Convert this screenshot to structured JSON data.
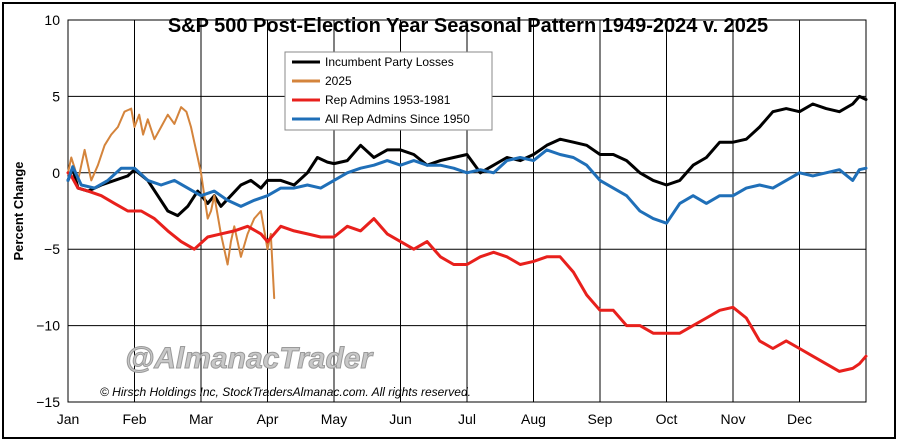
{
  "chart_data": {
    "type": "line",
    "title": "S&P 500 Post-Election Year Seasonal Pattern 1949-2024 v. 2025",
    "ylabel": "Percent Change",
    "xlabel": "",
    "ylim": [
      -15,
      10
    ],
    "yticks": [
      10,
      5,
      0,
      -5,
      -10,
      -15
    ],
    "ytick_labels": [
      "10",
      "5",
      "0",
      "−5",
      "−10",
      "−15"
    ],
    "months": [
      "Jan",
      "Feb",
      "Mar",
      "Apr",
      "May",
      "Jun",
      "Jul",
      "Aug",
      "Sep",
      "Oct",
      "Nov",
      "Dec"
    ],
    "xlim": [
      0,
      12
    ],
    "grid": true,
    "legend_position": "top-center",
    "watermark": "@AlmanacTrader",
    "copyright": "© Hirsch Holdings Inc, StockTradersAlmanac.com. All rights reserved.",
    "series": [
      {
        "name": "Incumbent Party Losses",
        "color": "#000000",
        "x": [
          0,
          0.07,
          0.15,
          0.3,
          0.5,
          0.7,
          0.9,
          1.0,
          1.2,
          1.35,
          1.5,
          1.65,
          1.8,
          1.95,
          2.1,
          2.2,
          2.3,
          2.45,
          2.6,
          2.75,
          2.9,
          3.0,
          3.2,
          3.4,
          3.6,
          3.75,
          3.9,
          4.0,
          4.2,
          4.4,
          4.6,
          4.8,
          5.0,
          5.2,
          5.4,
          5.6,
          5.8,
          6.0,
          6.2,
          6.4,
          6.6,
          6.8,
          7.0,
          7.2,
          7.4,
          7.6,
          7.8,
          8.0,
          8.2,
          8.4,
          8.6,
          8.8,
          9.0,
          9.2,
          9.4,
          9.6,
          9.8,
          10.0,
          10.2,
          10.4,
          10.6,
          10.8,
          11.0,
          11.2,
          11.4,
          11.6,
          11.8,
          11.9,
          12.0
        ],
        "y": [
          -0.5,
          0.3,
          -1.0,
          -1.2,
          -0.8,
          -0.5,
          -0.2,
          0.2,
          -0.5,
          -1.5,
          -2.5,
          -2.8,
          -2.2,
          -1.2,
          -2.0,
          -1.5,
          -2.2,
          -1.5,
          -0.8,
          -0.5,
          -1.0,
          -0.5,
          -0.5,
          -0.8,
          0.0,
          1.0,
          0.7,
          0.6,
          0.8,
          1.8,
          1.0,
          1.5,
          1.5,
          1.2,
          0.5,
          0.8,
          1.0,
          1.2,
          0.0,
          0.5,
          1.0,
          0.8,
          1.2,
          1.8,
          2.2,
          2.0,
          1.8,
          1.2,
          1.2,
          0.8,
          0.0,
          -0.5,
          -0.8,
          -0.5,
          0.5,
          1.0,
          2.0,
          2.0,
          2.2,
          3.0,
          4.0,
          4.2,
          4.0,
          4.5,
          4.2,
          4.0,
          4.5,
          5.0,
          4.8
        ]
      },
      {
        "name": "2025",
        "color": "#d4843c",
        "x": [
          0,
          0.05,
          0.1,
          0.15,
          0.25,
          0.35,
          0.45,
          0.55,
          0.65,
          0.75,
          0.85,
          0.95,
          1.0,
          1.07,
          1.13,
          1.2,
          1.3,
          1.4,
          1.5,
          1.6,
          1.7,
          1.78,
          1.85,
          1.9,
          1.95,
          2.0,
          2.05,
          2.1,
          2.15,
          2.2,
          2.3,
          2.4,
          2.45,
          2.5,
          2.6,
          2.7,
          2.8,
          2.9,
          3.0,
          3.05,
          3.1
        ],
        "y": [
          0,
          1.0,
          0.3,
          -0.5,
          1.5,
          -0.5,
          0.5,
          1.8,
          2.5,
          3.0,
          4.0,
          4.2,
          3.0,
          3.8,
          2.5,
          3.5,
          2.2,
          3.0,
          3.8,
          3.2,
          4.3,
          4.0,
          3.0,
          2.0,
          1.0,
          0.0,
          -1.5,
          -3.0,
          -2.5,
          -1.5,
          -4.0,
          -6.0,
          -4.5,
          -3.5,
          -5.5,
          -4.0,
          -3.0,
          -2.5,
          -5.0,
          -4.0,
          -8.2
        ]
      },
      {
        "name": "Rep Admins 1953-1981",
        "color": "#e8201c",
        "x": [
          0,
          0.05,
          0.15,
          0.3,
          0.5,
          0.7,
          0.9,
          1.1,
          1.3,
          1.5,
          1.7,
          1.9,
          2.1,
          2.3,
          2.5,
          2.7,
          2.9,
          3.0,
          3.2,
          3.4,
          3.6,
          3.8,
          4.0,
          4.2,
          4.4,
          4.6,
          4.8,
          5.0,
          5.2,
          5.4,
          5.6,
          5.8,
          6.0,
          6.2,
          6.4,
          6.6,
          6.8,
          7.0,
          7.2,
          7.4,
          7.6,
          7.8,
          8.0,
          8.2,
          8.4,
          8.6,
          8.8,
          9.0,
          9.2,
          9.4,
          9.6,
          9.8,
          10.0,
          10.2,
          10.4,
          10.6,
          10.8,
          11.0,
          11.2,
          11.4,
          11.6,
          11.8,
          11.9,
          12.0
        ],
        "y": [
          0,
          -0.2,
          -1.0,
          -1.2,
          -1.5,
          -2.0,
          -2.5,
          -2.5,
          -3.0,
          -3.8,
          -4.5,
          -5.0,
          -4.2,
          -4.0,
          -3.8,
          -3.5,
          -4.0,
          -4.5,
          -3.5,
          -3.8,
          -4.0,
          -4.2,
          -4.2,
          -3.5,
          -3.8,
          -3.0,
          -4.0,
          -4.5,
          -5.0,
          -4.5,
          -5.5,
          -6.0,
          -6.0,
          -5.5,
          -5.2,
          -5.5,
          -6.0,
          -5.8,
          -5.5,
          -5.5,
          -6.5,
          -8.0,
          -9.0,
          -9.0,
          -10.0,
          -10.0,
          -10.5,
          -10.5,
          -10.5,
          -10.0,
          -9.5,
          -9.0,
          -8.8,
          -9.5,
          -11.0,
          -11.5,
          -11.0,
          -11.5,
          -12.0,
          -12.5,
          -13.0,
          -12.8,
          -12.5,
          -12.0
        ]
      },
      {
        "name": "All Rep Admins Since 1950",
        "color": "#1f6fb8",
        "x": [
          0,
          0.07,
          0.2,
          0.4,
          0.6,
          0.8,
          1.0,
          1.2,
          1.4,
          1.6,
          1.8,
          2.0,
          2.2,
          2.4,
          2.6,
          2.8,
          3.0,
          3.2,
          3.4,
          3.6,
          3.8,
          4.0,
          4.2,
          4.4,
          4.6,
          4.8,
          5.0,
          5.2,
          5.4,
          5.6,
          5.8,
          6.0,
          6.2,
          6.4,
          6.6,
          6.8,
          7.0,
          7.2,
          7.4,
          7.6,
          7.8,
          8.0,
          8.2,
          8.4,
          8.6,
          8.8,
          9.0,
          9.2,
          9.4,
          9.6,
          9.8,
          10.0,
          10.2,
          10.4,
          10.6,
          10.8,
          11.0,
          11.2,
          11.4,
          11.6,
          11.8,
          11.9,
          12.0
        ],
        "y": [
          -0.5,
          0.4,
          -0.8,
          -1.0,
          -0.5,
          0.3,
          0.3,
          -0.5,
          -0.8,
          -0.5,
          -1.0,
          -1.5,
          -1.2,
          -1.8,
          -2.2,
          -1.8,
          -1.5,
          -1.0,
          -1.0,
          -0.8,
          -1.0,
          -0.5,
          0.0,
          0.3,
          0.5,
          0.8,
          0.5,
          0.8,
          0.5,
          0.5,
          0.3,
          0.0,
          0.2,
          0.0,
          0.8,
          1.0,
          0.8,
          1.5,
          1.2,
          1.0,
          0.5,
          -0.5,
          -1.0,
          -1.5,
          -2.5,
          -3.0,
          -3.3,
          -2.0,
          -1.5,
          -2.0,
          -1.5,
          -1.5,
          -1.0,
          -0.8,
          -1.0,
          -0.5,
          0.0,
          -0.2,
          0.0,
          0.2,
          -0.5,
          0.2,
          0.3
        ]
      }
    ]
  }
}
